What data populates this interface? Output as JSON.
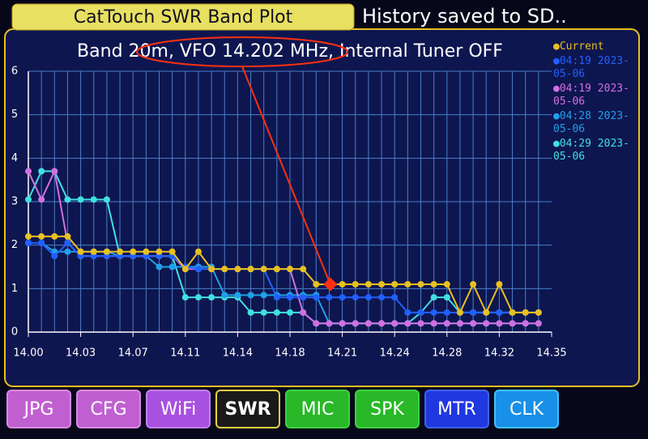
{
  "header": {
    "title": "CatTouch SWR Band Plot",
    "status": "History saved to SD.."
  },
  "chart_data": {
    "type": "line",
    "title": "Band 20m, VFO 14.202 MHz, Internal Tuner OFF",
    "x": [
      14,
      14.00875,
      14.0175,
      14.02625,
      14.035,
      14.04375,
      14.0525,
      14.06125,
      14.07,
      14.07875,
      14.0875,
      14.09625,
      14.105,
      14.11375,
      14.1225,
      14.13125,
      14.14,
      14.14875,
      14.1575,
      14.16625,
      14.175,
      14.18375,
      14.1925,
      14.20125,
      14.21,
      14.21875,
      14.2275,
      14.23625,
      14.245,
      14.25375,
      14.2625,
      14.27125,
      14.28,
      14.28875,
      14.2975,
      14.30625,
      14.315,
      14.32375,
      14.3325,
      14.34125
    ],
    "series": [
      {
        "name": "Current",
        "color": "#e8c020",
        "values": [
          2.2,
          2.2,
          2.2,
          2.2,
          1.85,
          1.85,
          1.85,
          1.85,
          1.85,
          1.85,
          1.85,
          1.85,
          1.45,
          1.85,
          1.45,
          1.45,
          1.45,
          1.45,
          1.45,
          1.45,
          1.45,
          1.45,
          1.1,
          1.1,
          1.1,
          1.1,
          1.1,
          1.1,
          1.1,
          1.1,
          1.1,
          1.1,
          1.1,
          0.45,
          1.1,
          0.45,
          1.1,
          0.45,
          0.45,
          0.45
        ]
      },
      {
        "name": "04:19 2023-05-06",
        "color": "#2060ff",
        "values": [
          2.05,
          2.05,
          1.75,
          2.05,
          1.75,
          1.75,
          1.75,
          1.75,
          1.75,
          1.75,
          1.75,
          1.75,
          1.5,
          1.45,
          1.45,
          1.45,
          1.45,
          1.45,
          1.45,
          0.8,
          0.8,
          0.8,
          0.8,
          0.8,
          0.8,
          0.8,
          0.8,
          0.8,
          0.8,
          0.45,
          0.45,
          0.45,
          0.45,
          0.45,
          0.45,
          0.45,
          0.45,
          0.45,
          0.45,
          0.45
        ]
      },
      {
        "name": "04:19 2023-05-06",
        "color": "#d070e0",
        "values": [
          3.7,
          3.05,
          3.7,
          2.05,
          1.75,
          1.75,
          1.75,
          1.75,
          1.75,
          1.75,
          1.75,
          1.75,
          1.45,
          1.45,
          1.45,
          1.45,
          1.45,
          1.45,
          1.45,
          1.45,
          1.45,
          0.45,
          0.2,
          0.2,
          0.2,
          0.2,
          0.2,
          0.2,
          0.2,
          0.2,
          0.2,
          0.2,
          0.2,
          0.2,
          0.2,
          0.2,
          0.2,
          0.2,
          0.2,
          0.2
        ]
      },
      {
        "name": "04:28 2023-05-06",
        "color": "#20a0e8",
        "values": [
          2.05,
          2.05,
          1.85,
          1.85,
          1.85,
          1.85,
          1.85,
          1.75,
          1.75,
          1.75,
          1.5,
          1.5,
          1.5,
          1.5,
          1.5,
          0.85,
          0.85,
          0.85,
          0.85,
          0.85,
          0.85,
          0.85,
          0.85,
          0.2,
          0.2,
          0.2,
          0.2,
          0.2,
          0.2,
          0.2,
          0.2,
          0.2,
          0.2,
          0.2,
          0.2,
          0.2,
          0.2,
          0.2,
          0.2,
          0.2
        ]
      },
      {
        "name": "04:29 2023-05-06",
        "color": "#40e0e0",
        "values": [
          3.05,
          3.7,
          3.7,
          3.05,
          3.05,
          3.05,
          3.05,
          1.75,
          1.75,
          1.75,
          1.75,
          1.75,
          0.8,
          0.8,
          0.8,
          0.8,
          0.8,
          0.45,
          0.45,
          0.45,
          0.45,
          0.45,
          0.2,
          0.2,
          0.2,
          0.2,
          0.2,
          0.2,
          0.2,
          0.2,
          0.45,
          0.8,
          0.8,
          0.45,
          0.45,
          0.45,
          0.45,
          0.45,
          0.45,
          0.45
        ]
      }
    ],
    "xlim": [
      14,
      14.35
    ],
    "xticks": [
      {
        "value": 14,
        "label": "14.00"
      },
      {
        "value": 14.035,
        "label": "14.03"
      },
      {
        "value": 14.07,
        "label": "14.07"
      },
      {
        "value": 14.105,
        "label": "14.11"
      },
      {
        "value": 14.14,
        "label": "14.14"
      },
      {
        "value": 14.175,
        "label": "14.18"
      },
      {
        "value": 14.21,
        "label": "14.21"
      },
      {
        "value": 14.245,
        "label": "14.24"
      },
      {
        "value": 14.28,
        "label": "14.28"
      },
      {
        "value": 14.315,
        "label": "14.32"
      },
      {
        "value": 14.35,
        "label": "14.35"
      }
    ],
    "ylim": [
      0,
      6
    ],
    "yticks": [
      0,
      1,
      2,
      3,
      4,
      5,
      6
    ],
    "grid": true,
    "marker": {
      "x": 14.202,
      "y": 1.1,
      "color": "#ff3010"
    }
  },
  "tabs": [
    "JPG",
    "CFG",
    "WiFi",
    "SWR",
    "MIC",
    "SPK",
    "MTR",
    "CLK"
  ]
}
